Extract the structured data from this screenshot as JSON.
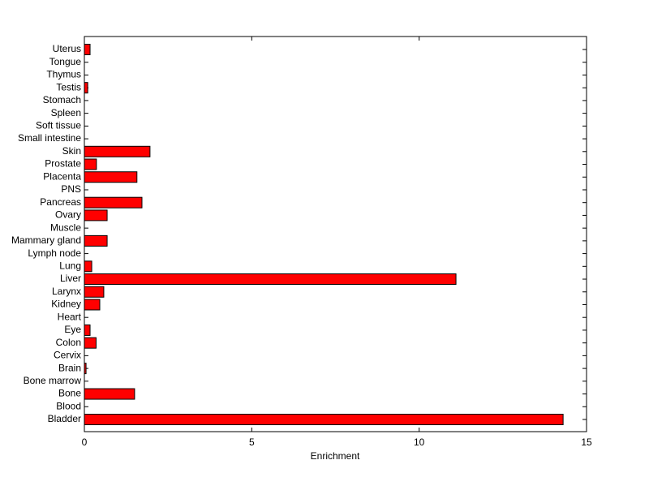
{
  "chart_data": {
    "type": "barh",
    "xlabel": "Enrichment",
    "categories": [
      "Bladder",
      "Blood",
      "Bone",
      "Bone marrow",
      "Brain",
      "Cervix",
      "Colon",
      "Eye",
      "Heart",
      "Kidney",
      "Larynx",
      "Liver",
      "Lung",
      "Lymph node",
      "Mammary gland",
      "Muscle",
      "Ovary",
      "Pancreas",
      "PNS",
      "Placenta",
      "Prostate",
      "Skin",
      "Small intestine",
      "Soft tissue",
      "Spleen",
      "Stomach",
      "Testis",
      "Thymus",
      "Tongue",
      "Uterus"
    ],
    "values": [
      14.3,
      0,
      1.5,
      0,
      0.05,
      0,
      0.35,
      0.17,
      0,
      0.46,
      0.58,
      11.1,
      0.22,
      0,
      0.68,
      0,
      0.68,
      1.72,
      0,
      1.57,
      0.36,
      1.96,
      0,
      0,
      0,
      0,
      0.1,
      0,
      0,
      0.17
    ],
    "color": "#ff0000",
    "xlim": [
      0,
      15
    ],
    "xticks": [
      0,
      5,
      10,
      15
    ]
  }
}
